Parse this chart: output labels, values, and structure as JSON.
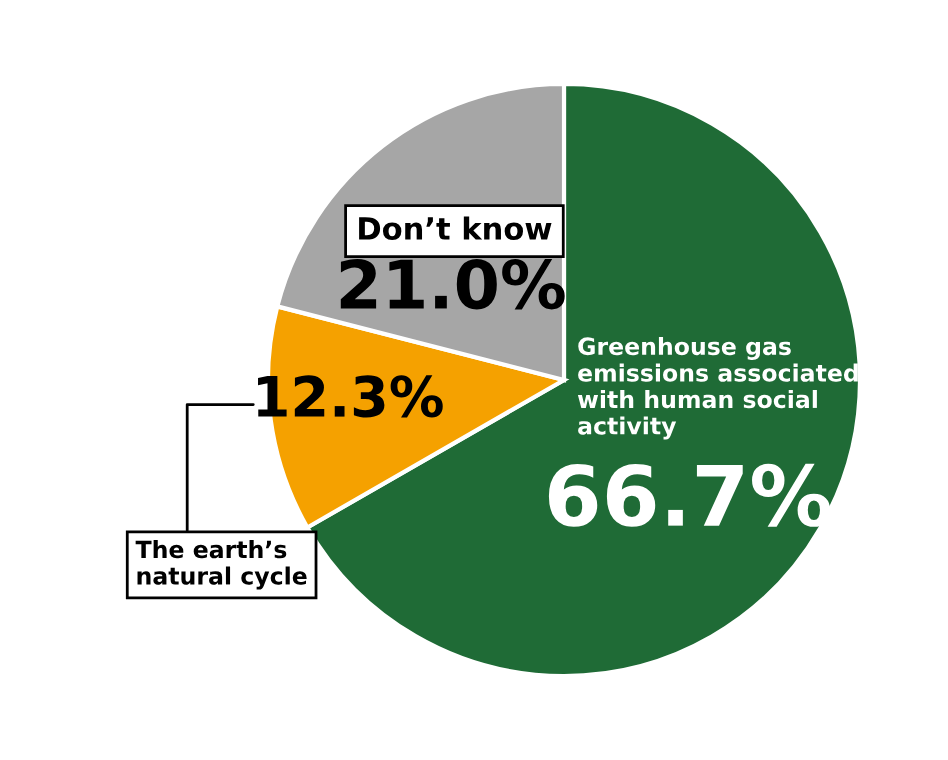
{
  "chart_data": {
    "type": "pie",
    "categories": [
      "Greenhouse gas emissions associated with human social activity",
      "The earth’s natural cycle",
      "Don’t know"
    ],
    "values": [
      66.7,
      12.3,
      21.0
    ],
    "value_labels": [
      "66.7%",
      "12.3%",
      "21.0%"
    ],
    "colors": [
      "#1f6b36",
      "#f5a100",
      "#a6a6a6"
    ]
  }
}
